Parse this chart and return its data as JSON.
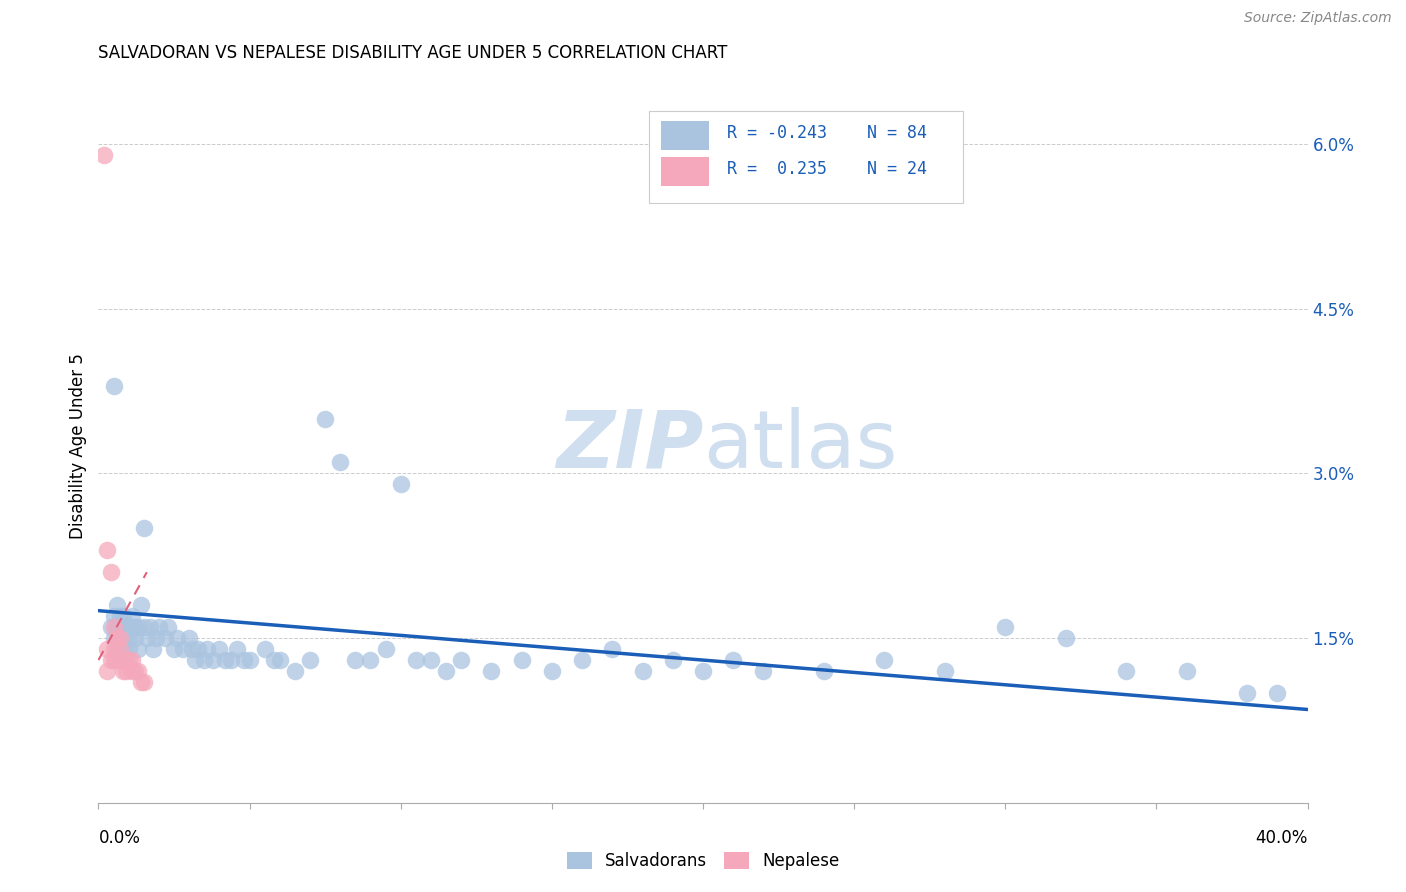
{
  "title": "SALVADORAN VS NEPALESE DISABILITY AGE UNDER 5 CORRELATION CHART",
  "source": "Source: ZipAtlas.com",
  "ylabel": "Disability Age Under 5",
  "xlim": [
    0.0,
    0.4
  ],
  "ylim": [
    0.0,
    0.065
  ],
  "yticks": [
    0.0,
    0.015,
    0.03,
    0.045,
    0.06
  ],
  "ytick_labels": [
    "",
    "1.5%",
    "3.0%",
    "4.5%",
    "6.0%"
  ],
  "xticks": [
    0.0,
    0.05,
    0.1,
    0.15,
    0.2,
    0.25,
    0.3,
    0.35,
    0.4
  ],
  "legend_r_blue": "R = -0.243",
  "legend_n_blue": "N = 84",
  "legend_r_pink": "R =  0.235",
  "legend_n_pink": "N = 24",
  "blue_color": "#aac4e0",
  "pink_color": "#f5a8bc",
  "blue_line_color": "#1a5eb8",
  "pink_line_color": "#e0607a",
  "watermark_color": "#d0dff0",
  "blue_scatter_x": [
    0.004,
    0.005,
    0.005,
    0.006,
    0.006,
    0.006,
    0.007,
    0.007,
    0.007,
    0.008,
    0.008,
    0.008,
    0.009,
    0.009,
    0.01,
    0.01,
    0.01,
    0.011,
    0.011,
    0.012,
    0.012,
    0.013,
    0.013,
    0.014,
    0.015,
    0.015,
    0.016,
    0.017,
    0.018,
    0.019,
    0.02,
    0.022,
    0.023,
    0.025,
    0.026,
    0.028,
    0.03,
    0.031,
    0.032,
    0.033,
    0.035,
    0.036,
    0.038,
    0.04,
    0.042,
    0.044,
    0.046,
    0.048,
    0.05,
    0.055,
    0.058,
    0.06,
    0.065,
    0.07,
    0.075,
    0.08,
    0.085,
    0.09,
    0.095,
    0.1,
    0.105,
    0.11,
    0.115,
    0.12,
    0.13,
    0.14,
    0.15,
    0.16,
    0.17,
    0.18,
    0.19,
    0.2,
    0.21,
    0.22,
    0.24,
    0.26,
    0.28,
    0.3,
    0.32,
    0.34,
    0.36,
    0.38,
    0.39,
    0.005
  ],
  "blue_scatter_y": [
    0.016,
    0.017,
    0.015,
    0.016,
    0.014,
    0.018,
    0.015,
    0.017,
    0.013,
    0.016,
    0.014,
    0.017,
    0.015,
    0.016,
    0.016,
    0.015,
    0.014,
    0.016,
    0.017,
    0.015,
    0.016,
    0.014,
    0.016,
    0.018,
    0.025,
    0.016,
    0.015,
    0.016,
    0.014,
    0.015,
    0.016,
    0.015,
    0.016,
    0.014,
    0.015,
    0.014,
    0.015,
    0.014,
    0.013,
    0.014,
    0.013,
    0.014,
    0.013,
    0.014,
    0.013,
    0.013,
    0.014,
    0.013,
    0.013,
    0.014,
    0.013,
    0.013,
    0.012,
    0.013,
    0.035,
    0.031,
    0.013,
    0.013,
    0.014,
    0.029,
    0.013,
    0.013,
    0.012,
    0.013,
    0.012,
    0.013,
    0.012,
    0.013,
    0.014,
    0.012,
    0.013,
    0.012,
    0.013,
    0.012,
    0.012,
    0.013,
    0.012,
    0.016,
    0.015,
    0.012,
    0.012,
    0.01,
    0.01,
    0.038
  ],
  "pink_scatter_x": [
    0.002,
    0.003,
    0.003,
    0.003,
    0.004,
    0.004,
    0.005,
    0.005,
    0.005,
    0.006,
    0.006,
    0.007,
    0.007,
    0.008,
    0.008,
    0.009,
    0.009,
    0.01,
    0.011,
    0.011,
    0.012,
    0.013,
    0.014,
    0.015
  ],
  "pink_scatter_y": [
    0.059,
    0.023,
    0.014,
    0.012,
    0.021,
    0.013,
    0.016,
    0.014,
    0.013,
    0.015,
    0.013,
    0.015,
    0.014,
    0.013,
    0.012,
    0.013,
    0.012,
    0.013,
    0.013,
    0.012,
    0.012,
    0.012,
    0.011,
    0.011
  ],
  "blue_line_x": [
    0.0,
    0.4
  ],
  "blue_line_y": [
    0.0175,
    0.0085
  ],
  "pink_line_x": [
    0.0,
    0.016
  ],
  "pink_line_y": [
    0.013,
    0.021
  ]
}
